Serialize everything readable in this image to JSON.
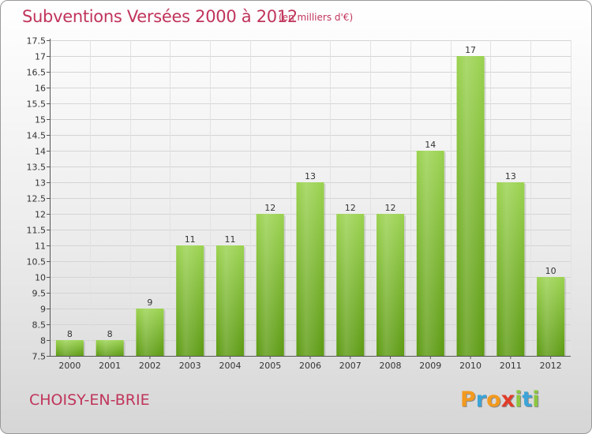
{
  "header": {
    "title": "Subventions Versées 2000 à 2012",
    "subtitle": "(en milliers d'€)"
  },
  "footer": {
    "commune": "CHOISY-EN-BRIE",
    "logo_letters": [
      "P",
      "r",
      "o",
      "x",
      "i",
      "t",
      "i"
    ]
  },
  "colors": {
    "title": "#c0345b",
    "bar_top": "#9ad24f",
    "bar_bottom": "#5c9a12",
    "logo": [
      "#f39a1e",
      "#3ba4d8",
      "#f39a1e",
      "#e23c2a",
      "#8cc63f",
      "#3ba4d8",
      "#8cc63f"
    ]
  },
  "chart_data": {
    "type": "bar",
    "title": "Subventions Versées 2000 à 2012",
    "xlabel": "",
    "ylabel": "",
    "categories": [
      "2000",
      "2001",
      "2002",
      "2003",
      "2004",
      "2005",
      "2006",
      "2007",
      "2008",
      "2009",
      "2010",
      "2011",
      "2012"
    ],
    "values": [
      8,
      8,
      9,
      11,
      11,
      12,
      13,
      12,
      12,
      14,
      17,
      13,
      10
    ],
    "ylim": [
      7.5,
      17.5
    ],
    "yticks": [
      7.5,
      8,
      8.5,
      9,
      9.5,
      10,
      10.5,
      11,
      11.5,
      12,
      12.5,
      13,
      13.5,
      14,
      14.5,
      15,
      15.5,
      16,
      16.5,
      17,
      17.5
    ],
    "ytick_labels": [
      "7.5",
      "8",
      "8.5",
      "9",
      "9.5",
      "10",
      "10.5",
      "11",
      "11.5",
      "12",
      "12.5",
      "13",
      "13.5",
      "14",
      "14.5",
      "15",
      "15.5",
      "16",
      "16.5",
      "17",
      "17.5"
    ],
    "grid": true
  }
}
